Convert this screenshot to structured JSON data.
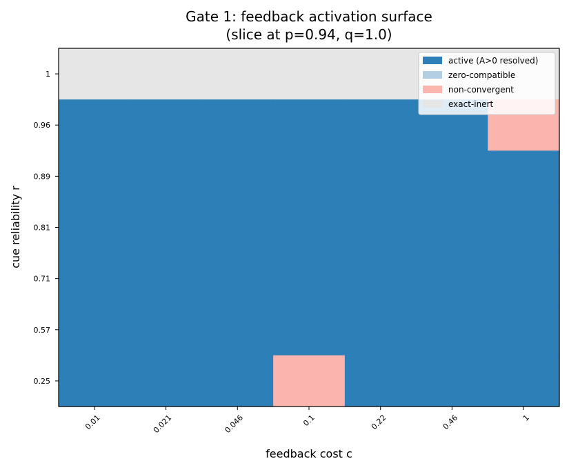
{
  "chart_data": {
    "type": "heatmap",
    "title": "Gate 1: feedback activation surface",
    "subtitle": "(slice at p=0.94, q=1.0)",
    "xlabel": "feedback cost c",
    "ylabel": "cue reliability r",
    "x_ticks": [
      "0.01",
      "0.021",
      "0.046",
      "0.1",
      "0.22",
      "0.46",
      "1"
    ],
    "y_ticks": [
      "1",
      "0.96",
      "0.89",
      "0.81",
      "0.71",
      "0.57",
      "0.25"
    ],
    "legend_position": "top-right",
    "categories": [
      {
        "key": "active",
        "label": "active (A>0 resolved)",
        "color": "#2d7fb8"
      },
      {
        "key": "zero",
        "label": "zero-compatible",
        "color": "#b3cde3"
      },
      {
        "key": "nonconv",
        "label": "non-convergent",
        "color": "#fbb4ae"
      },
      {
        "key": "inert",
        "label": "exact-inert",
        "color": "#e6e6e6"
      }
    ],
    "grid": [
      [
        "inert",
        "inert",
        "inert",
        "inert",
        "inert",
        "inert",
        "inert"
      ],
      [
        "active",
        "active",
        "active",
        "active",
        "active",
        "active",
        "nonconv"
      ],
      [
        "active",
        "active",
        "active",
        "active",
        "active",
        "active",
        "active"
      ],
      [
        "active",
        "active",
        "active",
        "active",
        "active",
        "active",
        "active"
      ],
      [
        "active",
        "active",
        "active",
        "active",
        "active",
        "active",
        "active"
      ],
      [
        "active",
        "active",
        "active",
        "active",
        "active",
        "active",
        "active"
      ],
      [
        "active",
        "active",
        "active",
        "nonconv",
        "active",
        "active",
        "active"
      ]
    ]
  }
}
